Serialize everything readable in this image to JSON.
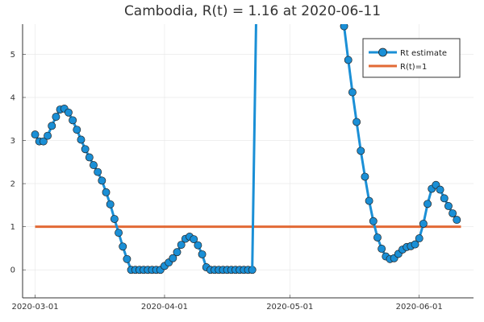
{
  "chart_data": {
    "type": "line",
    "title": "Cambodia, R(t) = 1.16 at 2020-06-11",
    "xlabel": "",
    "ylabel": "",
    "x_axis": {
      "type": "date",
      "range": [
        "2020-02-27",
        "2020-06-14"
      ],
      "ticks": [
        "2020-03-01",
        "2020-04-01",
        "2020-05-01",
        "2020-06-01"
      ]
    },
    "y_axis": {
      "range": [
        -0.65,
        5.7
      ],
      "ticks": [
        0,
        1,
        2,
        3,
        4,
        5
      ]
    },
    "grid": true,
    "legend_position": "top-right",
    "series": [
      {
        "name": "Rt estimate",
        "color": "#1a8fd6",
        "marker": "circle",
        "segments": [
          {
            "start_date": "2020-03-01",
            "values": [
              3.14,
              2.98,
              2.98,
              3.11,
              3.34,
              3.55,
              3.72,
              3.74,
              3.65,
              3.47,
              3.25,
              3.02,
              2.8,
              2.61,
              2.43,
              2.27,
              2.07,
              1.8,
              1.52,
              1.18,
              0.86,
              0.54,
              0.25,
              0.0,
              0.0,
              0.0,
              0.0,
              0.0,
              0.0,
              0.0,
              0.0,
              0.09,
              0.17,
              0.27,
              0.41,
              0.58,
              0.72,
              0.77,
              0.71,
              0.57,
              0.36,
              0.06,
              0.0,
              0.0,
              0.0,
              0.0,
              0.0,
              0.0,
              0.0,
              0.0,
              0.0,
              0.0,
              0.0
            ]
          },
          {
            "start_date": "2020-04-22",
            "values": [
              0.0,
              6.2
            ]
          },
          {
            "start_date": "2020-05-13",
            "values": [
              6.4,
              5.65,
              4.87,
              4.12,
              3.43,
              2.76,
              2.16,
              1.6,
              1.13,
              0.75,
              0.49,
              0.31,
              0.25,
              0.27,
              0.37,
              0.47,
              0.53,
              0.55,
              0.59,
              0.73,
              1.07,
              1.53,
              1.88,
              1.97,
              1.86,
              1.66,
              1.48,
              1.31,
              1.16
            ]
          }
        ]
      },
      {
        "name": "R(t)=1",
        "color": "#e26a35",
        "marker": "none",
        "x": [
          "2020-03-01",
          "2020-06-11"
        ],
        "values": [
          1,
          1
        ]
      }
    ]
  }
}
